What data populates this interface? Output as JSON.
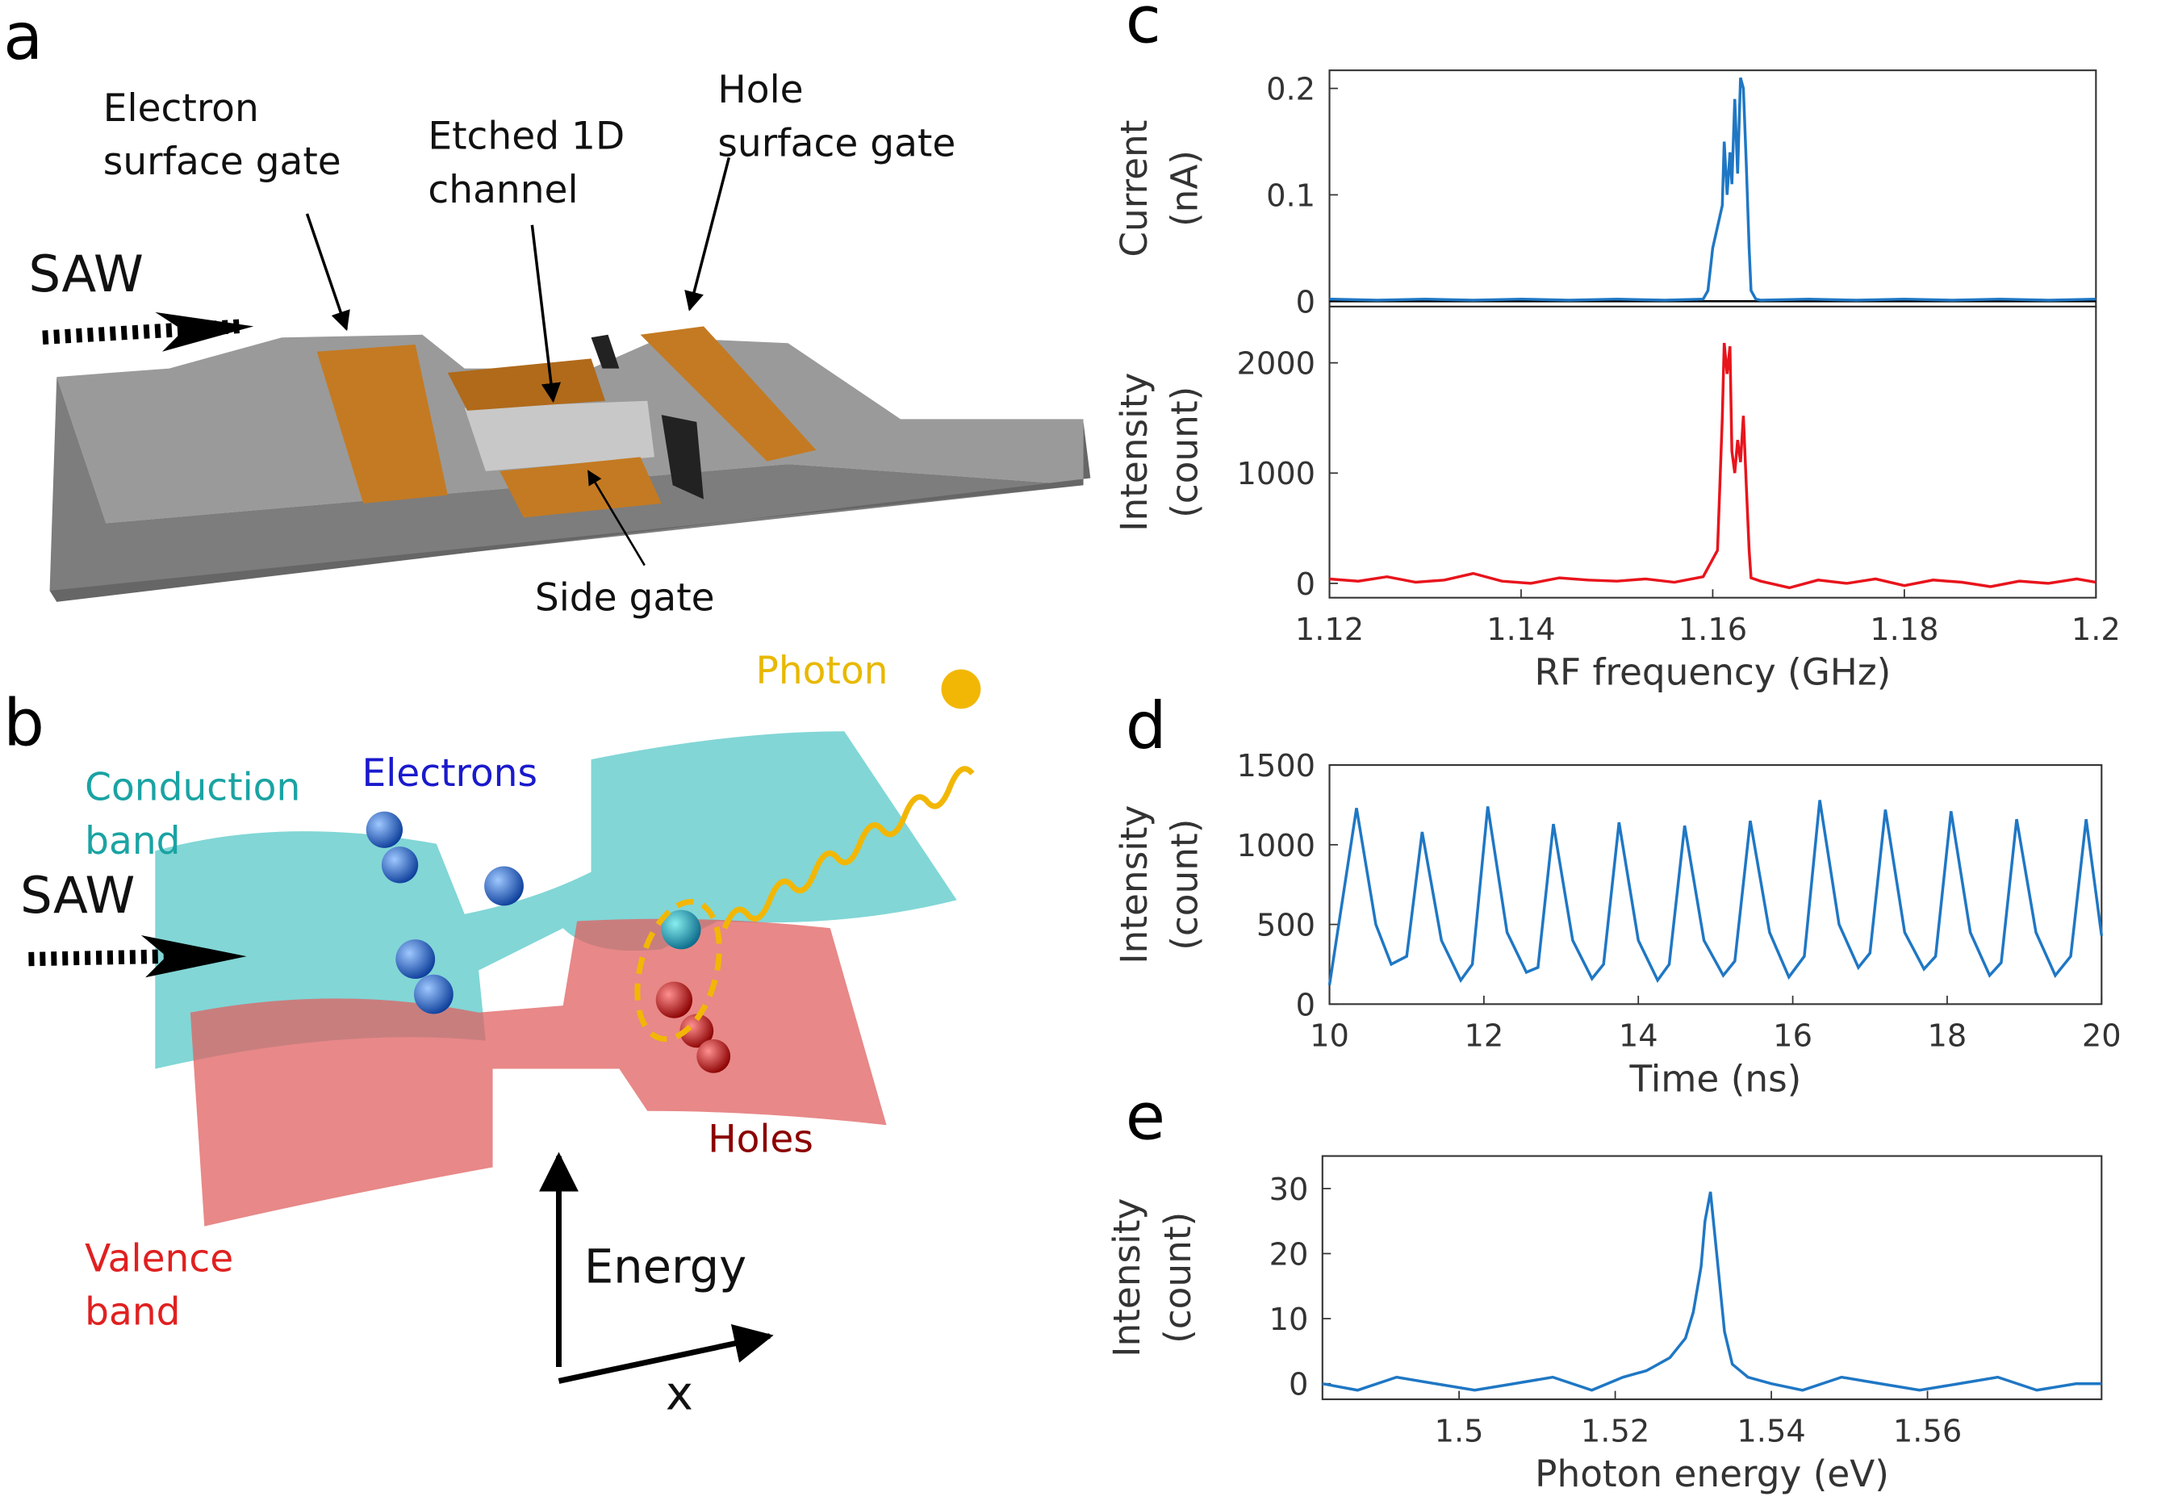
{
  "panel_a": {
    "letter": "a",
    "saw": "SAW",
    "electron_gate": [
      "Electron",
      "surface gate"
    ],
    "channel": [
      "Etched 1D",
      "channel"
    ],
    "hole_gate": [
      "Hole",
      "surface gate"
    ],
    "side_gate": "Side gate"
  },
  "panel_b": {
    "letter": "b",
    "conduction": [
      "Conduction",
      "band"
    ],
    "electrons": "Electrons",
    "photon": "Photon",
    "saw": "SAW",
    "holes": "Holes",
    "valence": [
      "Valence",
      "band"
    ],
    "energy": "Energy",
    "x_axis": "x"
  },
  "chart_data": [
    {
      "type": "line",
      "panel": "c",
      "ylabel": [
        "Current",
        "(nA)"
      ],
      "color": "#1f77c4",
      "xlim": [
        1.12,
        1.2
      ],
      "ylim": [
        -0.005,
        0.217
      ],
      "yticks": [
        0,
        0.1,
        0.2
      ],
      "x": [
        1.12,
        1.125,
        1.13,
        1.135,
        1.14,
        1.145,
        1.15,
        1.155,
        1.159,
        1.1595,
        1.16,
        1.1605,
        1.161,
        1.1612,
        1.1615,
        1.1618,
        1.162,
        1.1623,
        1.1626,
        1.1629,
        1.1632,
        1.1635,
        1.1638,
        1.164,
        1.1645,
        1.165,
        1.17,
        1.175,
        1.18,
        1.185,
        1.19,
        1.195,
        1.2
      ],
      "values": [
        0.002,
        0.001,
        0.002,
        0.001,
        0.002,
        0.001,
        0.002,
        0.001,
        0.002,
        0.01,
        0.05,
        0.07,
        0.09,
        0.15,
        0.1,
        0.14,
        0.11,
        0.19,
        0.12,
        0.21,
        0.2,
        0.13,
        0.05,
        0.01,
        0.002,
        0.001,
        0.002,
        0.001,
        0.002,
        0.001,
        0.002,
        0.001,
        0.002
      ]
    },
    {
      "type": "line",
      "ylabel": [
        "Intensity",
        "(count)"
      ],
      "xlabel": "RF frequency (GHz)",
      "color": "#e8141c",
      "xlim": [
        1.12,
        1.2
      ],
      "ylim": [
        -130,
        2510
      ],
      "yticks": [
        0,
        1000,
        2000
      ],
      "xticks": [
        1.12,
        1.14,
        1.16,
        1.18,
        1.2
      ],
      "x": [
        1.12,
        1.123,
        1.126,
        1.129,
        1.132,
        1.135,
        1.138,
        1.141,
        1.144,
        1.147,
        1.15,
        1.153,
        1.156,
        1.159,
        1.1605,
        1.161,
        1.1612,
        1.1615,
        1.1618,
        1.162,
        1.1623,
        1.1626,
        1.1629,
        1.1632,
        1.1635,
        1.1638,
        1.164,
        1.165,
        1.168,
        1.171,
        1.174,
        1.177,
        1.18,
        1.183,
        1.186,
        1.189,
        1.192,
        1.195,
        1.198,
        1.2
      ],
      "values": [
        40,
        20,
        60,
        10,
        30,
        90,
        20,
        0,
        50,
        30,
        20,
        40,
        10,
        60,
        300,
        1500,
        2180,
        1900,
        2150,
        1200,
        1000,
        1300,
        1100,
        1520,
        900,
        300,
        50,
        20,
        -40,
        30,
        0,
        40,
        -20,
        30,
        10,
        -30,
        20,
        0,
        40,
        10
      ]
    },
    {
      "type": "line",
      "panel": "d",
      "ylabel": [
        "Intensity",
        "(count)"
      ],
      "xlabel": "Time (ns)",
      "color": "#1f77c4",
      "xlim": [
        10,
        20
      ],
      "ylim": [
        0,
        1500
      ],
      "yticks": [
        0,
        500,
        1000,
        1500
      ],
      "xticks": [
        10,
        12,
        14,
        16,
        18,
        20
      ],
      "x": [
        10.0,
        10.35,
        10.6,
        10.8,
        11.0,
        11.2,
        11.45,
        11.7,
        11.85,
        12.05,
        12.3,
        12.55,
        12.7,
        12.9,
        13.15,
        13.4,
        13.55,
        13.75,
        14.0,
        14.25,
        14.4,
        14.6,
        14.85,
        15.1,
        15.25,
        15.45,
        15.7,
        15.95,
        16.15,
        16.35,
        16.6,
        16.85,
        17.0,
        17.2,
        17.45,
        17.7,
        17.85,
        18.05,
        18.3,
        18.55,
        18.7,
        18.9,
        19.15,
        19.4,
        19.6,
        19.8,
        20.0
      ],
      "values": [
        120,
        1230,
        500,
        250,
        300,
        1080,
        400,
        150,
        250,
        1240,
        450,
        200,
        230,
        1130,
        400,
        160,
        250,
        1140,
        400,
        150,
        250,
        1120,
        400,
        180,
        270,
        1150,
        450,
        170,
        300,
        1280,
        500,
        230,
        320,
        1220,
        450,
        220,
        300,
        1210,
        450,
        180,
        260,
        1160,
        450,
        180,
        300,
        1160,
        430
      ]
    },
    {
      "type": "line",
      "panel": "e",
      "ylabel": [
        "Intensity",
        "(count)"
      ],
      "xlabel": "Photon energy (eV)",
      "color": "#1f77c4",
      "xlim": [
        1.4825,
        1.5823
      ],
      "ylim": [
        -2.4,
        35
      ],
      "yticks": [
        0,
        10,
        20,
        30
      ],
      "xticks": [
        1.5,
        1.52,
        1.54,
        1.56
      ],
      "x": [
        1.4825,
        1.487,
        1.492,
        1.497,
        1.502,
        1.507,
        1.512,
        1.517,
        1.521,
        1.524,
        1.527,
        1.529,
        1.53,
        1.531,
        1.5315,
        1.5322,
        1.533,
        1.534,
        1.535,
        1.537,
        1.54,
        1.544,
        1.549,
        1.554,
        1.559,
        1.564,
        1.569,
        1.574,
        1.579,
        1.5823
      ],
      "values": [
        0,
        -1,
        1,
        0,
        -1,
        0,
        1,
        -1,
        1,
        2,
        4,
        7,
        11,
        18,
        25,
        29.5,
        20,
        8,
        3,
        1,
        0,
        -1,
        1,
        0,
        -1,
        0,
        1,
        -1,
        0,
        0
      ]
    }
  ]
}
